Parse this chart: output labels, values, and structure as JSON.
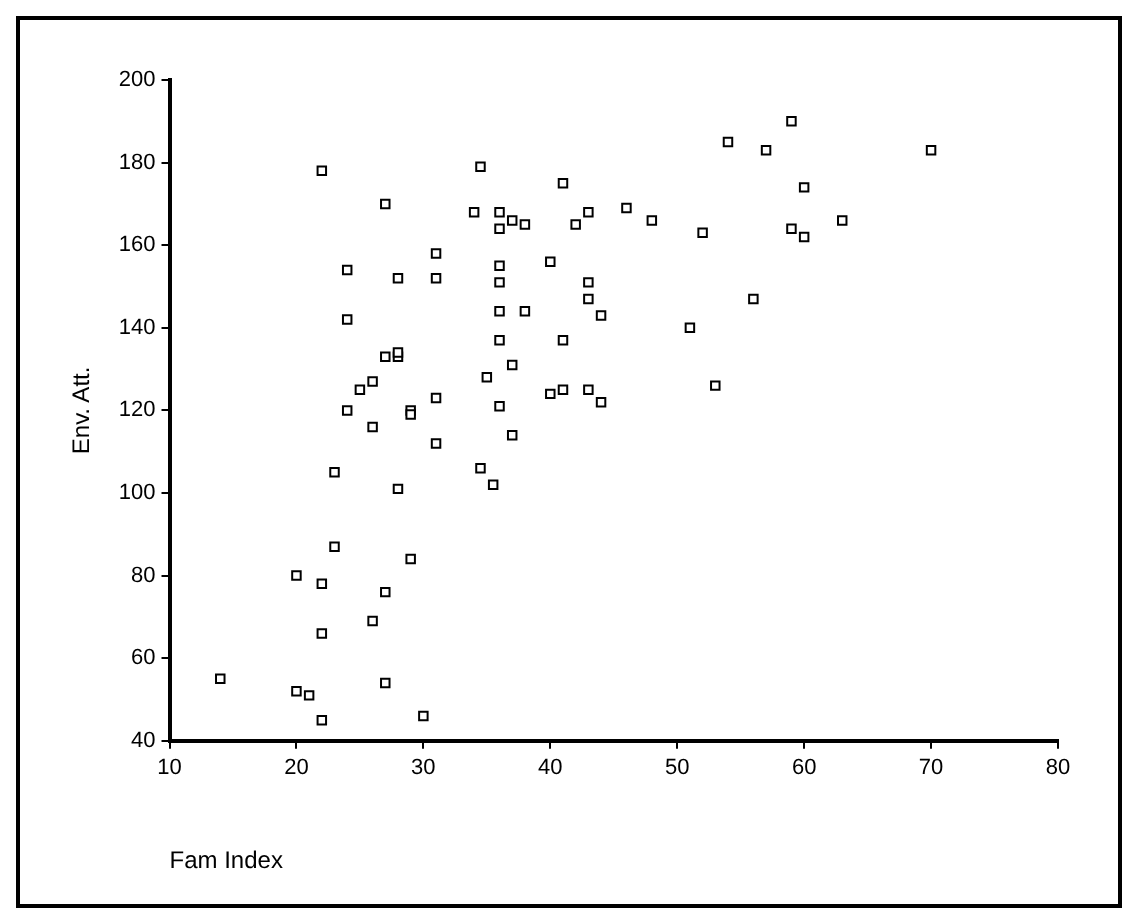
{
  "chart_data": {
    "type": "scatter",
    "xlabel": "Fam Index",
    "ylabel": "Env. Att.",
    "marker": "square",
    "grid": false,
    "legend": false,
    "xlim": [
      10,
      80
    ],
    "xticks": [
      10,
      20,
      30,
      40,
      50,
      60,
      70,
      80
    ],
    "ylim": [
      40,
      200
    ],
    "yticks": [
      40,
      60,
      80,
      100,
      120,
      140,
      160,
      180,
      200
    ],
    "series": [
      {
        "color": "#000000",
        "x": [
          22,
          27,
          24,
          24,
          28,
          31,
          31,
          34,
          34.5,
          36,
          36,
          37,
          38,
          41,
          42,
          43,
          46,
          48,
          40,
          36,
          36,
          36,
          38,
          36,
          43,
          43,
          44,
          41,
          37,
          35,
          36,
          37,
          40,
          41,
          43,
          44,
          34.5,
          35.5,
          31,
          31,
          29,
          29,
          28,
          27,
          28,
          26,
          25,
          24,
          26,
          23,
          28,
          23,
          29,
          27,
          22,
          20,
          26,
          22,
          14,
          20,
          21,
          22,
          27,
          30,
          51,
          52,
          53,
          54,
          56,
          57,
          59,
          59,
          60,
          60,
          63,
          70
        ],
        "values": [
          178,
          170,
          154,
          142,
          152,
          158,
          152,
          168,
          179,
          168,
          164,
          166,
          165,
          175,
          165,
          168,
          169,
          166,
          156,
          155,
          151,
          144,
          144,
          137,
          151,
          147,
          143,
          137,
          131,
          128,
          121,
          114,
          124,
          125,
          125,
          122,
          106,
          102,
          123,
          112,
          120,
          119,
          133,
          133,
          134,
          127,
          125,
          120,
          116,
          105,
          101,
          87,
          84,
          76,
          78,
          80,
          69,
          66,
          55,
          52,
          51,
          45,
          54,
          46,
          140,
          163,
          126,
          185,
          147,
          183,
          190,
          164,
          174,
          162,
          166,
          183
        ]
      }
    ]
  }
}
